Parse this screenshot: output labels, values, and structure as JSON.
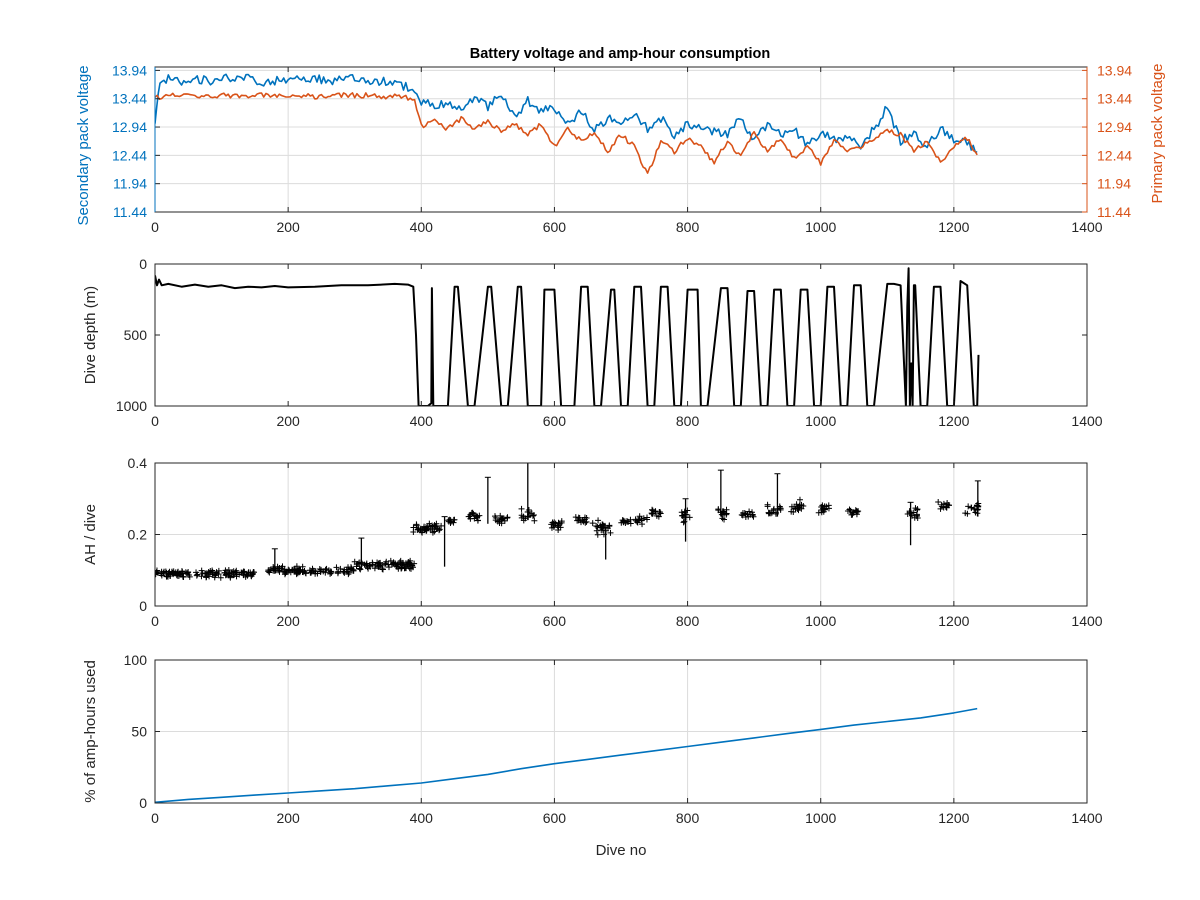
{
  "figure": {
    "title": "Battery voltage and amp-hour consumption",
    "xlabel": "Dive no"
  },
  "colors": {
    "secondary": "#0072BD",
    "primary": "#D95319",
    "black": "#000000",
    "grid": "#dcdcdc",
    "axis": "#262626"
  },
  "chart_data": [
    {
      "type": "line",
      "title": "Battery voltage and amp-hour consumption",
      "xlabel": "",
      "ylabel": "Secondary pack voltage",
      "y2label": "Primary pack voltage",
      "xlim": [
        0,
        1400
      ],
      "ylim": [
        11.44,
        14.0
      ],
      "y2lim": [
        11.44,
        14.0
      ],
      "xticks": [
        0,
        200,
        400,
        600,
        800,
        1000,
        1200,
        1400
      ],
      "yticks": [
        11.44,
        11.94,
        12.44,
        12.94,
        13.44,
        13.94
      ],
      "y2ticks": [
        11.44,
        11.94,
        12.44,
        12.94,
        13.44,
        13.94
      ],
      "grid": true,
      "series": [
        {
          "name": "Secondary pack voltage",
          "axis": "left",
          "color": "#0072BD",
          "x": [
            0,
            5,
            10,
            20,
            40,
            60,
            80,
            100,
            120,
            140,
            160,
            180,
            200,
            220,
            240,
            260,
            280,
            300,
            320,
            340,
            360,
            380,
            390,
            400,
            420,
            440,
            460,
            480,
            500,
            520,
            540,
            560,
            580,
            600,
            620,
            640,
            660,
            680,
            700,
            720,
            740,
            760,
            780,
            800,
            820,
            840,
            860,
            880,
            900,
            920,
            940,
            960,
            980,
            1000,
            1020,
            1040,
            1060,
            1080,
            1100,
            1120,
            1140,
            1160,
            1180,
            1200,
            1220,
            1235
          ],
          "y": [
            13.0,
            13.6,
            13.75,
            13.8,
            13.75,
            13.8,
            13.75,
            13.8,
            13.78,
            13.8,
            13.7,
            13.75,
            13.8,
            13.78,
            13.8,
            13.75,
            13.8,
            13.78,
            13.7,
            13.75,
            13.7,
            13.65,
            13.5,
            13.4,
            13.3,
            13.4,
            13.2,
            13.45,
            13.3,
            13.5,
            13.1,
            13.4,
            13.2,
            13.3,
            13.0,
            13.2,
            12.9,
            13.1,
            12.95,
            13.2,
            12.9,
            13.1,
            12.8,
            13.0,
            12.95,
            12.85,
            12.8,
            13.1,
            12.7,
            13.0,
            12.8,
            12.9,
            12.6,
            12.85,
            12.7,
            12.8,
            12.6,
            12.9,
            13.3,
            12.7,
            12.8,
            12.6,
            12.9,
            12.7,
            12.65,
            12.5
          ]
        },
        {
          "name": "Primary pack voltage",
          "axis": "right",
          "color": "#D95319",
          "x": [
            0,
            10,
            20,
            40,
            60,
            80,
            100,
            120,
            140,
            160,
            180,
            200,
            220,
            240,
            260,
            280,
            300,
            320,
            340,
            360,
            380,
            390,
            400,
            420,
            440,
            460,
            480,
            500,
            520,
            540,
            560,
            580,
            600,
            620,
            640,
            660,
            680,
            700,
            720,
            740,
            760,
            780,
            800,
            820,
            840,
            860,
            880,
            900,
            920,
            940,
            960,
            980,
            1000,
            1020,
            1040,
            1060,
            1080,
            1100,
            1120,
            1140,
            1160,
            1180,
            1200,
            1220,
            1235
          ],
          "y": [
            13.5,
            13.45,
            13.5,
            13.5,
            13.5,
            13.48,
            13.5,
            13.5,
            13.5,
            13.5,
            13.48,
            13.5,
            13.5,
            13.48,
            13.5,
            13.5,
            13.5,
            13.5,
            13.48,
            13.48,
            13.45,
            13.4,
            12.95,
            13.05,
            12.9,
            13.1,
            12.9,
            13.05,
            12.85,
            13.0,
            12.8,
            13.0,
            12.6,
            12.9,
            12.7,
            12.85,
            12.5,
            12.8,
            12.6,
            12.1,
            12.7,
            12.5,
            12.75,
            12.6,
            12.3,
            12.7,
            12.4,
            12.85,
            12.5,
            12.75,
            12.4,
            12.6,
            12.3,
            12.7,
            12.5,
            12.6,
            12.7,
            12.9,
            12.8,
            12.5,
            12.7,
            12.3,
            12.6,
            12.75,
            12.45
          ]
        }
      ]
    },
    {
      "type": "line",
      "title": "",
      "xlabel": "",
      "ylabel": "Dive depth (m)",
      "xlim": [
        0,
        1400
      ],
      "ylim": [
        0,
        1000
      ],
      "y_reversed": true,
      "xticks": [
        0,
        200,
        400,
        600,
        800,
        1000,
        1200,
        1400
      ],
      "yticks": [
        0,
        500,
        1000
      ],
      "grid": false,
      "series": [
        {
          "color": "#000000",
          "x": [
            0,
            3,
            6,
            10,
            20,
            40,
            60,
            80,
            100,
            120,
            140,
            160,
            180,
            200,
            240,
            280,
            320,
            360,
            380,
            388,
            392,
            396,
            410,
            415,
            416,
            418,
            420,
            440,
            450,
            455,
            470,
            480,
            500,
            505,
            520,
            530,
            545,
            550,
            560,
            580,
            585,
            600,
            610,
            630,
            640,
            650,
            660,
            670,
            685,
            690,
            700,
            710,
            720,
            730,
            740,
            750,
            760,
            770,
            780,
            790,
            800,
            815,
            820,
            830,
            850,
            860,
            870,
            880,
            890,
            900,
            910,
            920,
            930,
            940,
            950,
            960,
            970,
            980,
            990,
            1000,
            1010,
            1020,
            1030,
            1040,
            1050,
            1060,
            1070,
            1080,
            1100,
            1110,
            1120,
            1128,
            1130,
            1132,
            1134,
            1136,
            1138,
            1140,
            1142,
            1150,
            1160,
            1170,
            1180,
            1190,
            1200,
            1210,
            1220,
            1230,
            1235,
            1237
          ],
          "y": [
            80,
            150,
            110,
            150,
            140,
            160,
            145,
            160,
            150,
            170,
            160,
            165,
            155,
            165,
            160,
            150,
            150,
            140,
            145,
            160,
            500,
            1000,
            1000,
            980,
            170,
            1000,
            1000,
            1000,
            160,
            160,
            1000,
            1000,
            160,
            160,
            1000,
            1000,
            160,
            160,
            1000,
            1000,
            180,
            180,
            1000,
            1000,
            160,
            160,
            1000,
            1000,
            180,
            180,
            1000,
            1000,
            160,
            160,
            1000,
            1000,
            160,
            160,
            1000,
            1000,
            180,
            180,
            1000,
            1000,
            170,
            170,
            1000,
            1000,
            190,
            190,
            1000,
            1000,
            180,
            180,
            1000,
            1000,
            180,
            180,
            1000,
            1000,
            160,
            160,
            1000,
            1000,
            150,
            150,
            1000,
            1000,
            140,
            140,
            150,
            1000,
            300,
            30,
            1000,
            700,
            1000,
            150,
            150,
            1000,
            1000,
            160,
            160,
            1000,
            1000,
            120,
            150,
            1000,
            1000,
            640
          ]
        }
      ]
    },
    {
      "type": "scatter",
      "title": "",
      "xlabel": "",
      "ylabel": "AH / dive",
      "xlim": [
        0,
        1400
      ],
      "ylim": [
        0,
        0.4
      ],
      "xticks": [
        0,
        200,
        400,
        600,
        800,
        1000,
        1200,
        1400
      ],
      "yticks": [
        0,
        0.2,
        0.4
      ],
      "grid": true,
      "marker": "+",
      "series": [
        {
          "color": "#000000",
          "clusters": [
            {
              "x0": 0,
              "x1": 150,
              "center": 0.09,
              "spread": 0.012,
              "n": 120
            },
            {
              "x0": 170,
              "x1": 300,
              "center": 0.1,
              "spread": 0.012,
              "n": 100
            },
            {
              "x0": 300,
              "x1": 390,
              "center": 0.115,
              "spread": 0.015,
              "n": 80
            },
            {
              "x0": 388,
              "x1": 430,
              "center": 0.22,
              "spread": 0.018,
              "n": 40
            },
            {
              "x0": 440,
              "x1": 450,
              "center": 0.24,
              "spread": 0.01,
              "n": 10
            },
            {
              "x0": 470,
              "x1": 490,
              "center": 0.25,
              "spread": 0.015,
              "n": 16
            },
            {
              "x0": 510,
              "x1": 530,
              "center": 0.24,
              "spread": 0.015,
              "n": 16
            },
            {
              "x0": 550,
              "x1": 570,
              "center": 0.255,
              "spread": 0.02,
              "n": 16
            },
            {
              "x0": 595,
              "x1": 615,
              "center": 0.225,
              "spread": 0.015,
              "n": 16
            },
            {
              "x0": 630,
              "x1": 650,
              "center": 0.24,
              "spread": 0.012,
              "n": 14
            },
            {
              "x0": 655,
              "x1": 685,
              "center": 0.22,
              "spread": 0.025,
              "n": 22
            },
            {
              "x0": 700,
              "x1": 715,
              "center": 0.235,
              "spread": 0.012,
              "n": 12
            },
            {
              "x0": 720,
              "x1": 740,
              "center": 0.24,
              "spread": 0.012,
              "n": 14
            },
            {
              "x0": 745,
              "x1": 760,
              "center": 0.26,
              "spread": 0.015,
              "n": 12
            },
            {
              "x0": 790,
              "x1": 805,
              "center": 0.25,
              "spread": 0.02,
              "n": 14
            },
            {
              "x0": 845,
              "x1": 860,
              "center": 0.26,
              "spread": 0.02,
              "n": 14
            },
            {
              "x0": 880,
              "x1": 900,
              "center": 0.255,
              "spread": 0.015,
              "n": 14
            },
            {
              "x0": 920,
              "x1": 940,
              "center": 0.27,
              "spread": 0.02,
              "n": 16
            },
            {
              "x0": 955,
              "x1": 975,
              "center": 0.28,
              "spread": 0.02,
              "n": 16
            },
            {
              "x0": 995,
              "x1": 1015,
              "center": 0.27,
              "spread": 0.015,
              "n": 16
            },
            {
              "x0": 1040,
              "x1": 1060,
              "center": 0.265,
              "spread": 0.012,
              "n": 14
            },
            {
              "x0": 1130,
              "x1": 1150,
              "center": 0.26,
              "spread": 0.02,
              "n": 14
            },
            {
              "x0": 1175,
              "x1": 1195,
              "center": 0.28,
              "spread": 0.015,
              "n": 14
            },
            {
              "x0": 1215,
              "x1": 1237,
              "center": 0.27,
              "spread": 0.02,
              "n": 16
            }
          ],
          "spikes": [
            {
              "x": 560,
              "y0": 0.24,
              "y1": 0.4
            },
            {
              "x": 500,
              "y0": 0.23,
              "y1": 0.36
            },
            {
              "x": 435,
              "y0": 0.11,
              "y1": 0.25
            },
            {
              "x": 677,
              "y0": 0.13,
              "y1": 0.22
            },
            {
              "x": 797,
              "y0": 0.18,
              "y1": 0.3
            },
            {
              "x": 850,
              "y0": 0.25,
              "y1": 0.38
            },
            {
              "x": 935,
              "y0": 0.25,
              "y1": 0.37
            },
            {
              "x": 1135,
              "y0": 0.17,
              "y1": 0.29
            },
            {
              "x": 1236,
              "y0": 0.25,
              "y1": 0.35
            },
            {
              "x": 310,
              "y0": 0.1,
              "y1": 0.19
            },
            {
              "x": 180,
              "y0": 0.09,
              "y1": 0.16
            }
          ]
        }
      ]
    },
    {
      "type": "line",
      "title": "",
      "xlabel": "Dive no",
      "ylabel": "% of amp-hours used",
      "xlim": [
        0,
        1400
      ],
      "ylim": [
        0,
        100
      ],
      "xticks": [
        0,
        200,
        400,
        600,
        800,
        1000,
        1200,
        1400
      ],
      "yticks": [
        0,
        50,
        100
      ],
      "grid": true,
      "series": [
        {
          "color": "#0072BD",
          "x": [
            0,
            50,
            100,
            150,
            200,
            250,
            300,
            350,
            400,
            450,
            500,
            550,
            600,
            650,
            700,
            750,
            800,
            850,
            900,
            950,
            1000,
            1050,
            1100,
            1150,
            1200,
            1235
          ],
          "y": [
            0.5,
            2.5,
            4,
            5.5,
            7,
            8.5,
            10,
            12,
            14,
            17,
            20,
            24,
            27.5,
            30.5,
            33.5,
            36.5,
            39.5,
            42.5,
            45.5,
            48.5,
            51.5,
            54.5,
            57,
            59.5,
            63,
            66
          ]
        }
      ]
    }
  ]
}
